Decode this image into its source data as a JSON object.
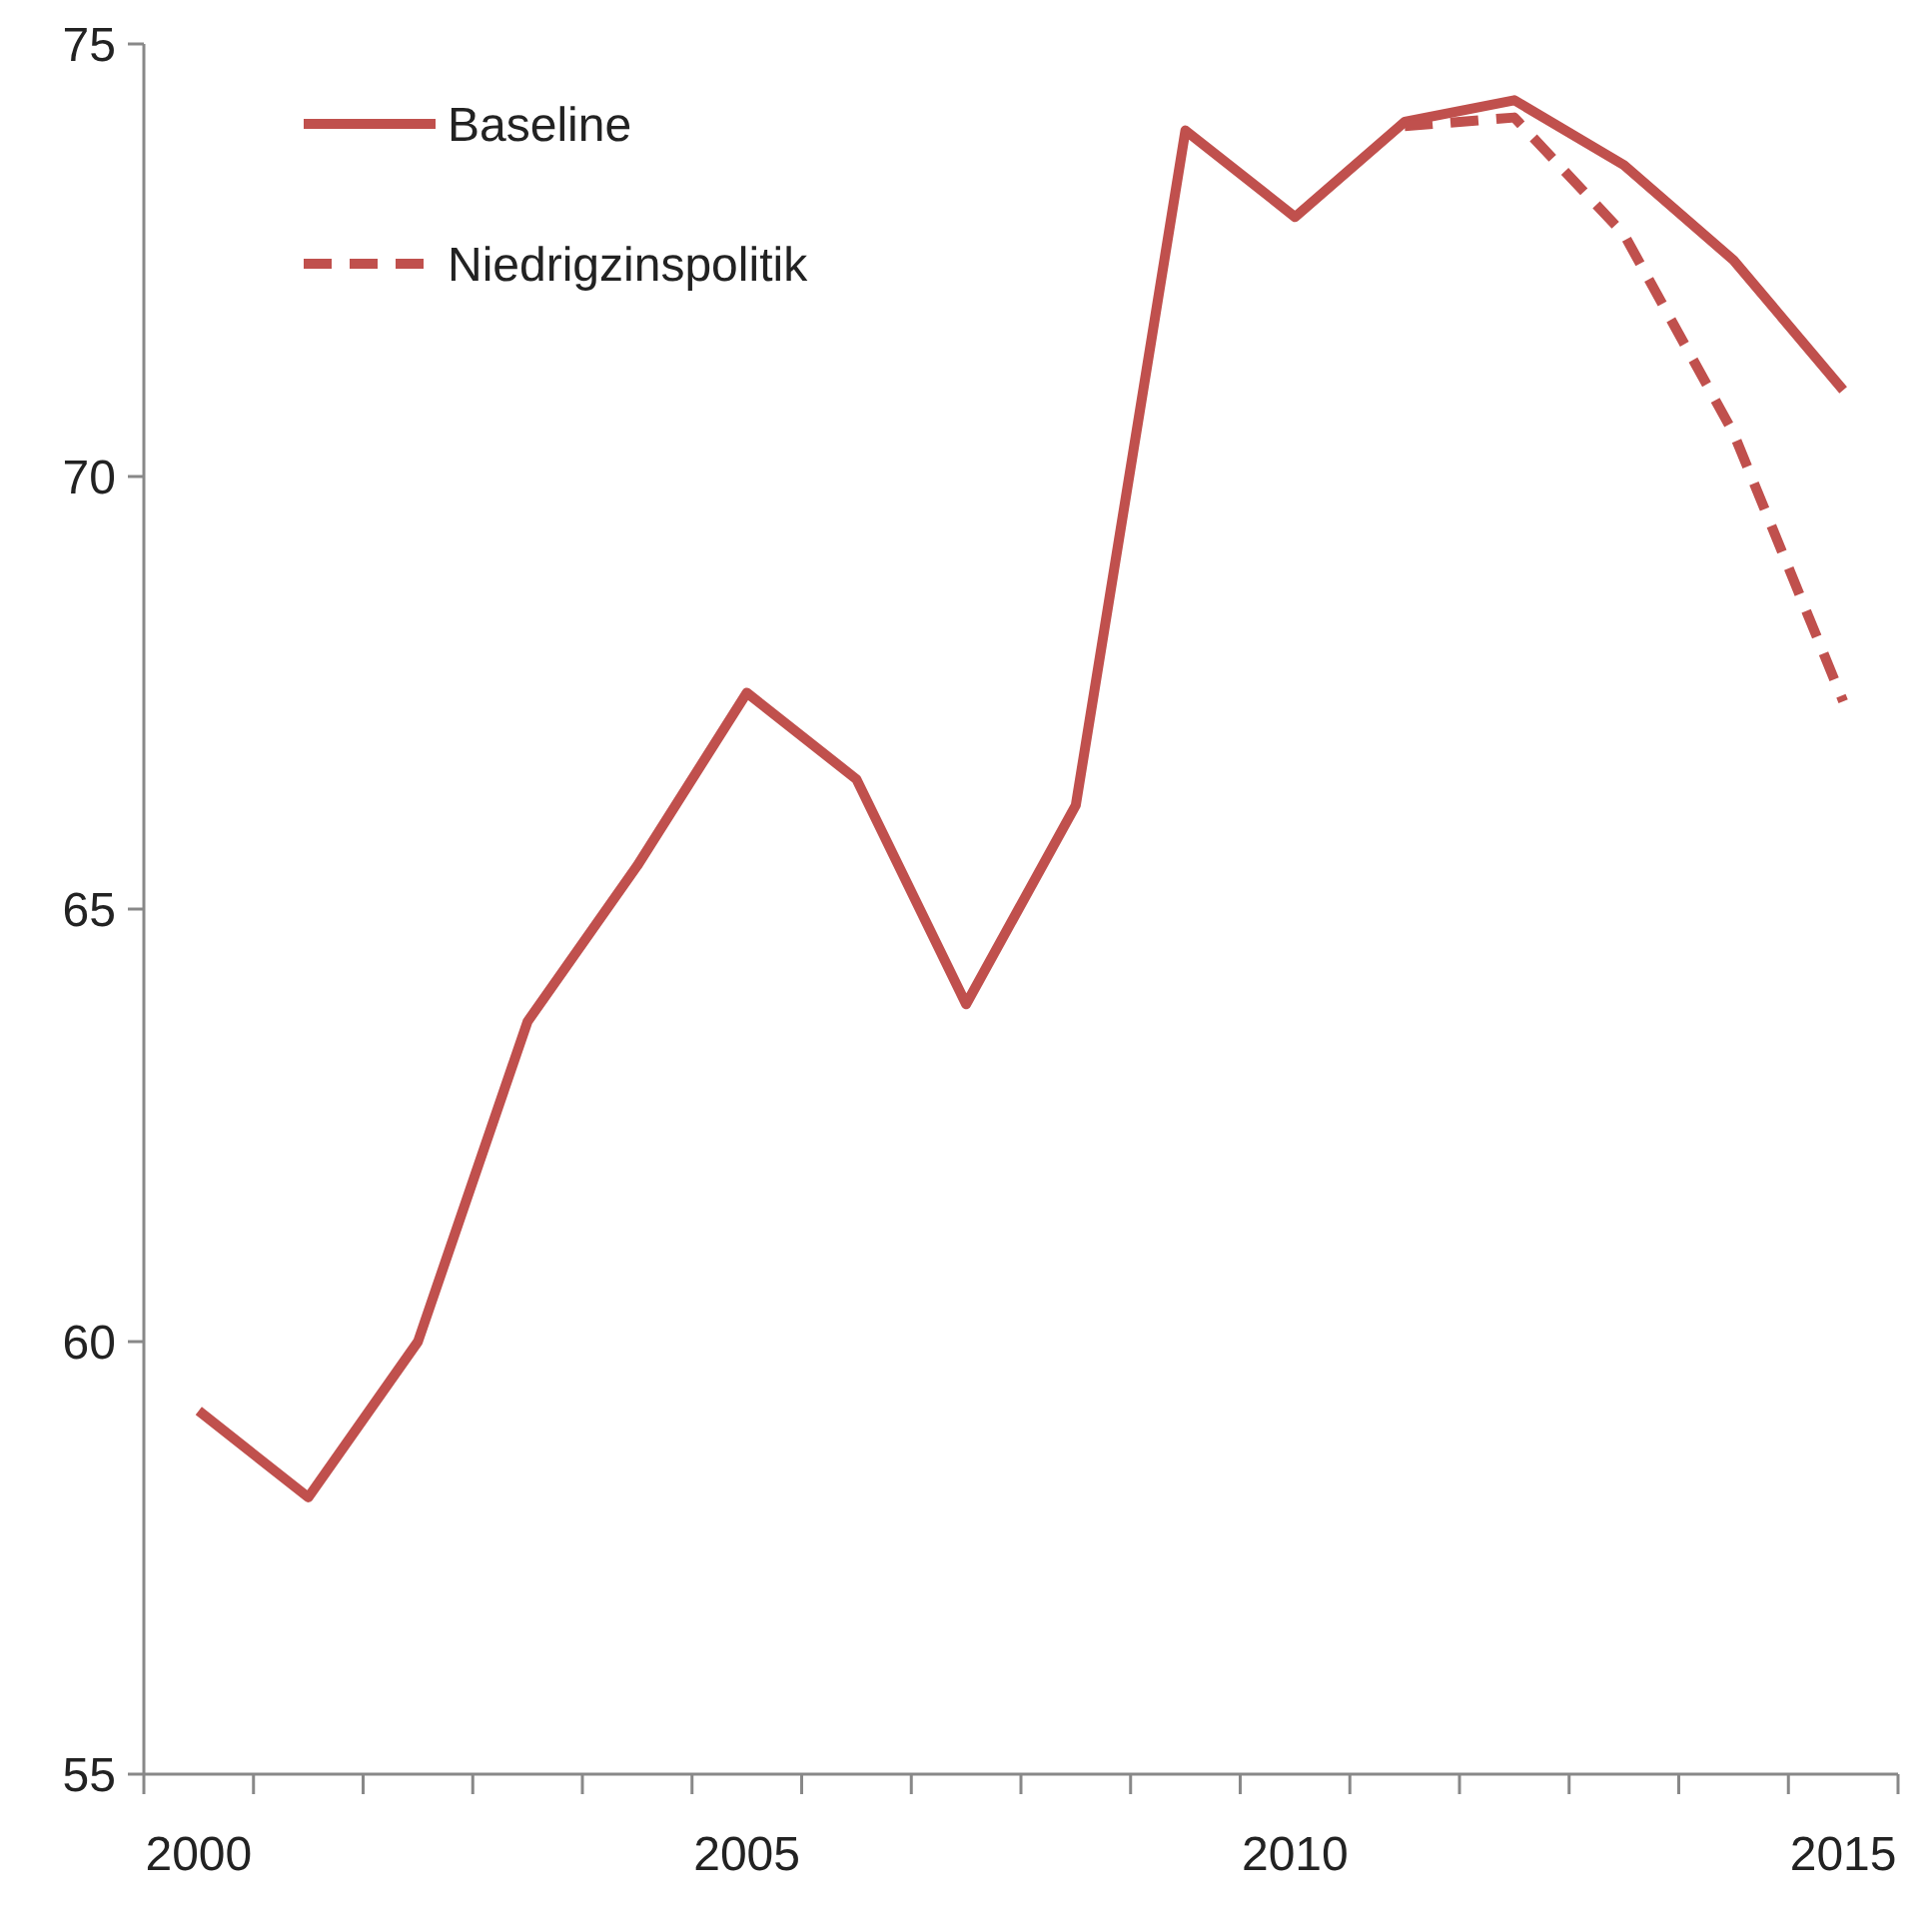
{
  "chart_data": {
    "type": "line",
    "categories": [
      "2000",
      null,
      null,
      null,
      null,
      "2005",
      null,
      null,
      null,
      null,
      "2010",
      null,
      null,
      null,
      null,
      "2015"
    ],
    "ylim": [
      55,
      75
    ],
    "yticks": [
      55,
      60,
      65,
      70,
      75
    ],
    "legend": "top left",
    "grid": false,
    "series": [
      {
        "name": "Baseline",
        "color": "#c0504d",
        "line_style": "solid",
        "values": [
          59.2,
          58.2,
          60.0,
          63.7,
          65.5,
          67.5,
          66.5,
          63.9,
          66.2,
          74.0,
          73.0,
          74.1,
          74.35,
          73.6,
          72.5,
          71.0
        ]
      },
      {
        "name": "Niedrigzinspolitik",
        "color": "#c0504d",
        "line_style": "dashed",
        "values": [
          null,
          null,
          null,
          null,
          null,
          null,
          null,
          null,
          null,
          null,
          null,
          74.05,
          74.15,
          72.8,
          70.5,
          67.4
        ]
      }
    ]
  }
}
